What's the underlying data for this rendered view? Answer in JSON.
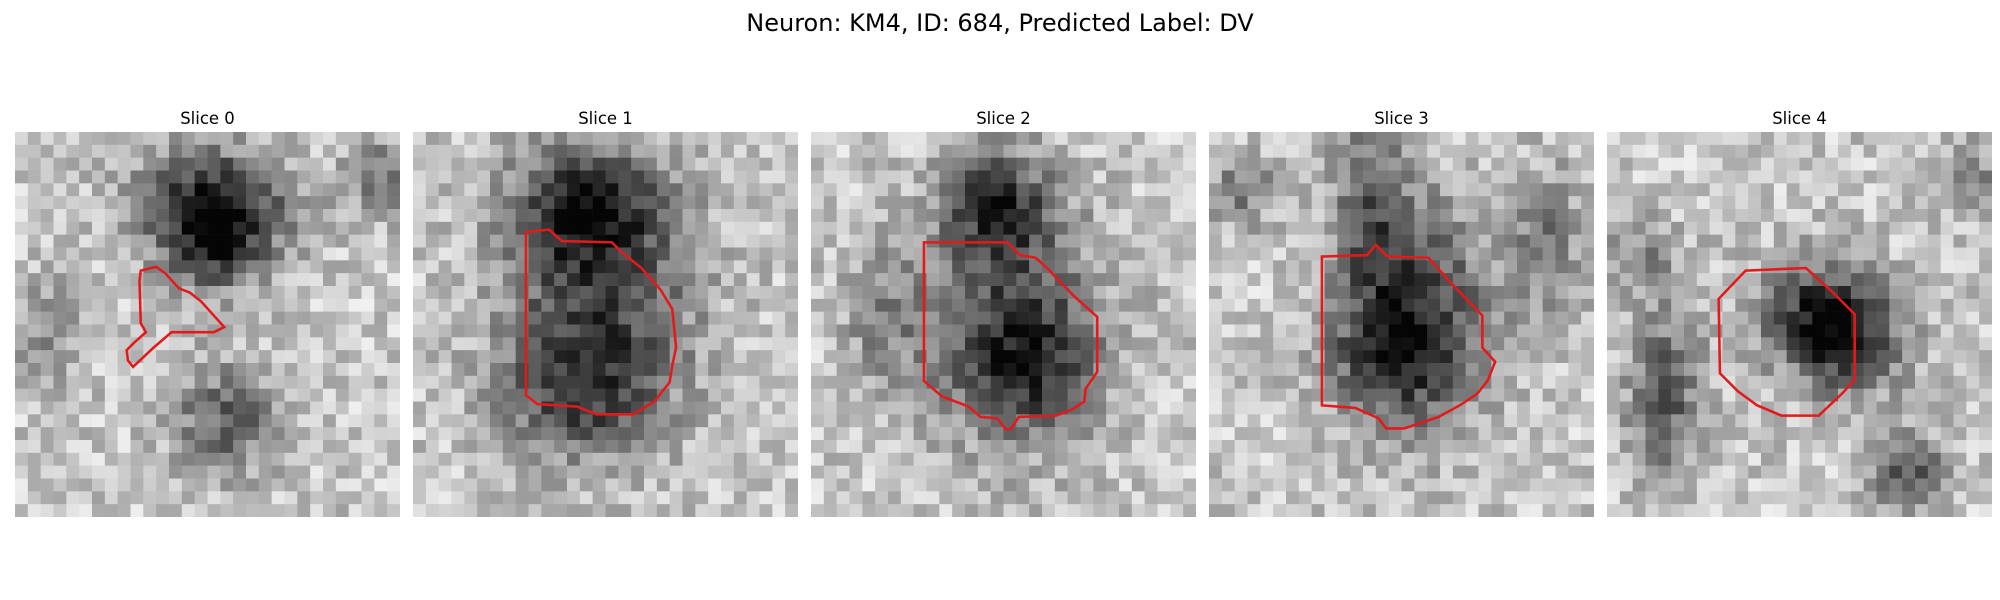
{
  "figure": {
    "title": "Neuron: KM4, ID: 684, Predicted Label: DV"
  },
  "panels": [
    {
      "title": "Slice 0"
    },
    {
      "title": "Slice 1"
    },
    {
      "title": "Slice 2"
    },
    {
      "title": "Slice 3"
    },
    {
      "title": "Slice 4"
    }
  ],
  "colors": {
    "contour": "#e31a1c",
    "background": "#ffffff"
  }
}
